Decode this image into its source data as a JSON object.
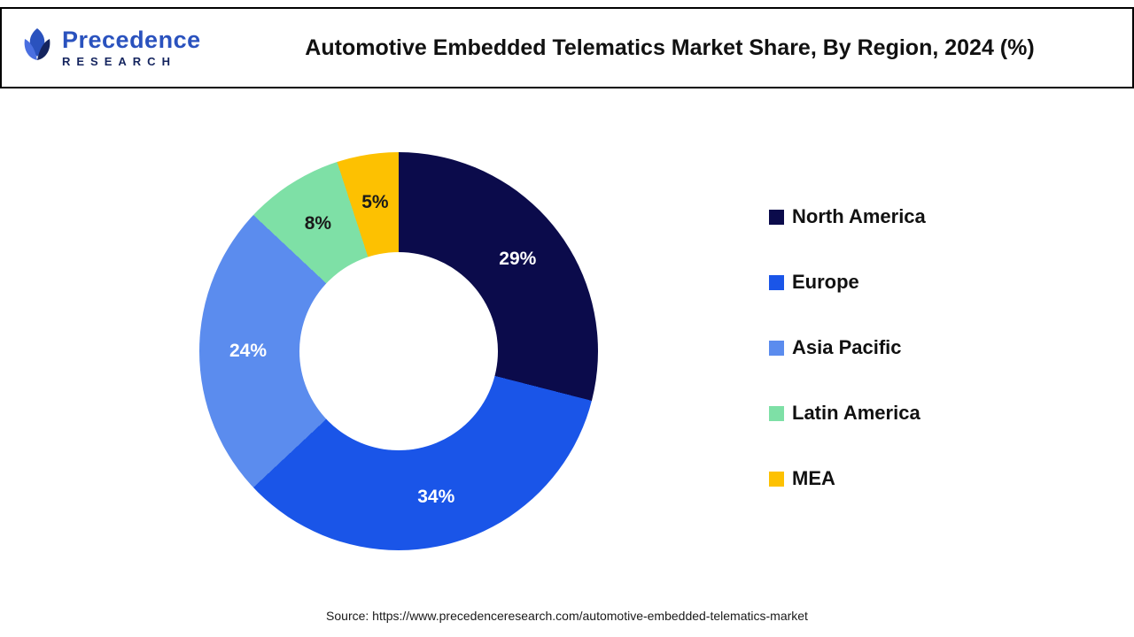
{
  "header": {
    "logo": {
      "line1": "Precedence",
      "line2": "RESEARCH"
    },
    "title": "Automotive Embedded Telematics Market Share, By Region, 2024 (%)"
  },
  "chart_data": {
    "type": "pie",
    "donut": true,
    "title": "Automotive Embedded Telematics Market Share, By Region, 2024 (%)",
    "start_angle_deg": 0,
    "direction": "clockwise",
    "categories": [
      "North America",
      "Europe",
      "Asia Pacific",
      "Latin America",
      "MEA"
    ],
    "values": [
      29,
      34,
      24,
      8,
      5
    ],
    "unit": "%",
    "colors": [
      "#0b0b4b",
      "#1a55e8",
      "#5b8cee",
      "#7ee0a6",
      "#fdc101"
    ],
    "label_colors": [
      "#ffffff",
      "#ffffff",
      "#ffffff",
      "#1a1a1a",
      "#1a1a1a"
    ],
    "legend_position": "right"
  },
  "footer": {
    "source": "Source: https://www.precedenceresearch.com/automotive-embedded-telematics-market"
  }
}
